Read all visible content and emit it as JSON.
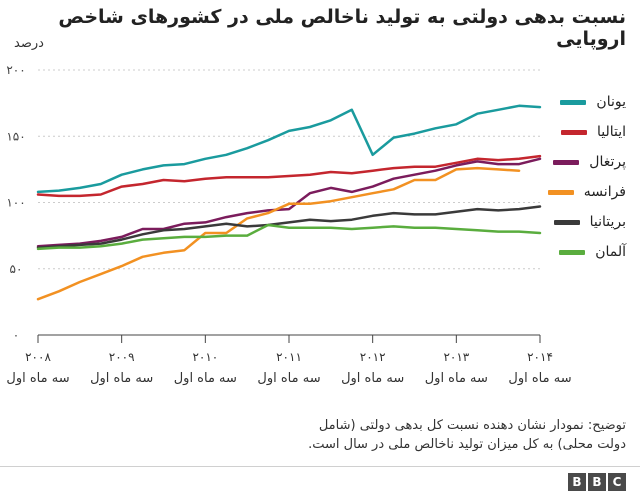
{
  "chart_data": {
    "type": "line",
    "title": "نسبت بدهی دولتی به تولید ناخالص ملی در کشورهای شاخص اروپایی",
    "ylabel": "درصد",
    "ylim": [
      0,
      200
    ],
    "yticks": [
      0,
      50,
      100,
      150,
      200
    ],
    "ytick_labels": [
      "۰",
      "۵۰",
      "۱۰۰",
      "۱۵۰",
      "۲۰۰"
    ],
    "xlim": [
      2008,
      2014
    ],
    "xticks": [
      {
        "x": 2008,
        "year": "۲۰۰۸",
        "sub": "سه ماه اول"
      },
      {
        "x": 2009,
        "year": "۲۰۰۹",
        "sub": "سه ماه اول"
      },
      {
        "x": 2010,
        "year": "۲۰۱۰",
        "sub": "سه ماه اول"
      },
      {
        "x": 2011,
        "year": "۲۰۱۱",
        "sub": "سه ماه اول"
      },
      {
        "x": 2012,
        "year": "۲۰۱۲",
        "sub": "سه ماه اول"
      },
      {
        "x": 2013,
        "year": "۲۰۱۳",
        "sub": "سه ماه اول"
      },
      {
        "x": 2014,
        "year": "۲۰۱۴",
        "sub": "سه ماه اول"
      }
    ],
    "grid": true,
    "legend_position": "right",
    "series": [
      {
        "name": "یونان",
        "color": "#1a9b9e",
        "x": [
          2008,
          2008.25,
          2008.5,
          2008.75,
          2009,
          2009.25,
          2009.5,
          2009.75,
          2010,
          2010.25,
          2010.5,
          2010.75,
          2011,
          2011.25,
          2011.5,
          2011.75,
          2012,
          2012.25,
          2012.5,
          2012.75,
          2013,
          2013.25,
          2013.5,
          2013.75,
          2014
        ],
        "y": [
          108,
          109,
          111,
          114,
          121,
          125,
          128,
          129,
          133,
          136,
          141,
          147,
          154,
          157,
          162,
          170,
          136,
          149,
          152,
          156,
          159,
          167,
          170,
          173,
          172
        ]
      },
      {
        "name": "ایتالیا",
        "color": "#c4262e",
        "x": [
          2008,
          2008.25,
          2008.5,
          2008.75,
          2009,
          2009.25,
          2009.5,
          2009.75,
          2010,
          2010.25,
          2010.5,
          2010.75,
          2011,
          2011.25,
          2011.5,
          2011.75,
          2012,
          2012.25,
          2012.5,
          2012.75,
          2013,
          2013.25,
          2013.5,
          2013.75,
          2014
        ],
        "y": [
          106,
          105,
          105,
          106,
          112,
          114,
          117,
          116,
          118,
          119,
          119,
          119,
          120,
          121,
          123,
          122,
          124,
          126,
          127,
          127,
          130,
          133,
          132,
          133,
          135
        ]
      },
      {
        "name": "پرتغال",
        "color": "#7b1c5c",
        "x": [
          2008,
          2008.25,
          2008.5,
          2008.75,
          2009,
          2009.25,
          2009.5,
          2009.75,
          2010,
          2010.25,
          2010.5,
          2010.75,
          2011,
          2011.25,
          2011.5,
          2011.75,
          2012,
          2012.25,
          2012.5,
          2012.75,
          2013,
          2013.25,
          2013.5,
          2013.75,
          2014
        ],
        "y": [
          67,
          68,
          69,
          71,
          74,
          80,
          80,
          84,
          85,
          89,
          92,
          94,
          95,
          107,
          111,
          108,
          112,
          118,
          121,
          124,
          128,
          131,
          129,
          129,
          133
        ]
      },
      {
        "name": "فرانسه",
        "color": "#f29122",
        "x": [
          2008,
          2008.25,
          2008.5,
          2008.75,
          2009,
          2009.25,
          2009.5,
          2009.75,
          2010,
          2010.25,
          2010.5,
          2010.75,
          2011,
          2011.25,
          2011.5,
          2011.75,
          2012,
          2012.25,
          2012.5,
          2012.75,
          2013,
          2013.25,
          2013.5,
          2013.75
        ],
        "y": [
          27,
          33,
          40,
          46,
          52,
          59,
          62,
          64,
          77,
          77,
          88,
          92,
          99,
          99,
          101,
          104,
          107,
          110,
          117,
          117,
          125,
          126,
          125,
          124
        ]
      },
      {
        "name": "بریتانیا",
        "color": "#3a3a3a",
        "x": [
          2008,
          2008.25,
          2008.5,
          2008.75,
          2009,
          2009.25,
          2009.5,
          2009.75,
          2010,
          2010.25,
          2010.5,
          2010.75,
          2011,
          2011.25,
          2011.5,
          2011.75,
          2012,
          2012.25,
          2012.5,
          2012.75,
          2013,
          2013.25,
          2013.5,
          2013.75,
          2014
        ],
        "y": [
          66,
          67,
          68,
          69,
          72,
          76,
          79,
          80,
          82,
          84,
          82,
          83,
          85,
          87,
          86,
          87,
          90,
          92,
          91,
          91,
          93,
          95,
          94,
          95,
          97
        ]
      },
      {
        "name": "آلمان",
        "color": "#5aad3e",
        "x": [
          2008,
          2008.25,
          2008.5,
          2008.75,
          2009,
          2009.25,
          2009.5,
          2009.75,
          2010,
          2010.25,
          2010.5,
          2010.75,
          2011,
          2011.25,
          2011.5,
          2011.75,
          2012,
          2012.25,
          2012.5,
          2012.75,
          2013,
          2013.25,
          2013.5,
          2013.75,
          2014
        ],
        "y": [
          65,
          66,
          66,
          67,
          69,
          72,
          73,
          74,
          74,
          75,
          75,
          83,
          81,
          81,
          81,
          80,
          81,
          82,
          81,
          81,
          80,
          79,
          78,
          78,
          77
        ]
      }
    ]
  },
  "note": {
    "line1": "توضیح: نمودار نشان دهنده نسبت کل بدهی دولتی (شامل",
    "line2": "دولت محلی) به  کل میزان تولید ناخالص ملی در سال است."
  },
  "brand": {
    "letters": [
      "B",
      "B",
      "C"
    ]
  }
}
